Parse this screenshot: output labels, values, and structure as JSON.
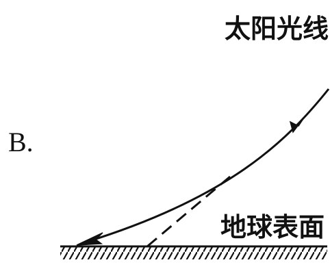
{
  "option": {
    "label": "B."
  },
  "labels": {
    "sunlight": "太阳光线",
    "surface": "地球表面"
  },
  "colors": {
    "ink": "#111111",
    "background": "#ffffff"
  },
  "icons": {
    "arrow": "arrowhead-icon",
    "hatch": "ground-hatch-icon"
  }
}
